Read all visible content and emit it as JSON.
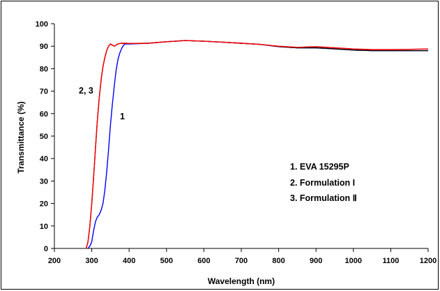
{
  "chart_data": {
    "type": "line",
    "title": "",
    "xlabel": "Wavelength (nm)",
    "ylabel": "Transmittance (%)",
    "xlim": [
      200,
      1200
    ],
    "ylim": [
      0,
      100
    ],
    "xticks": [
      200,
      300,
      400,
      500,
      600,
      700,
      800,
      900,
      1000,
      1100,
      1200
    ],
    "yticks": [
      0,
      10,
      20,
      30,
      40,
      50,
      60,
      70,
      80,
      90,
      100
    ],
    "grid": false,
    "series": [
      {
        "color": "#0000ff",
        "label": "1",
        "x": [
          290,
          295,
          300,
          305,
          310,
          315,
          320,
          325,
          330,
          335,
          340,
          345,
          350,
          355,
          360,
          365,
          370,
          375,
          380,
          385,
          390,
          395,
          400,
          450,
          500,
          550,
          600,
          650,
          700,
          750,
          800,
          850,
          900,
          950,
          1000,
          1050,
          1100,
          1150,
          1200
        ],
        "y": [
          0,
          1,
          3,
          8,
          12,
          14,
          15,
          17,
          20,
          26,
          34,
          44,
          55,
          64,
          72,
          79,
          84,
          87,
          89,
          90.5,
          91,
          91,
          91,
          91.3,
          92,
          92.5,
          92.2,
          91.8,
          91.3,
          90.8,
          89.8,
          89.3,
          89.3,
          88.8,
          88.3,
          88,
          88,
          88,
          88
        ]
      },
      {
        "color": "#000000",
        "label": "2, 3",
        "x": [
          285,
          290,
          295,
          300,
          305,
          310,
          315,
          320,
          325,
          330,
          335,
          340,
          345,
          350,
          355,
          360,
          365,
          370,
          375,
          380,
          390,
          400,
          450,
          500,
          550,
          600,
          650,
          700,
          750,
          800,
          850,
          900,
          950,
          1000,
          1050,
          1100,
          1150,
          1200
        ],
        "y": [
          0,
          3,
          10,
          20,
          32,
          45,
          57,
          67,
          75,
          81,
          85,
          88,
          90,
          91,
          90.5,
          90,
          90.5,
          91,
          91.2,
          91.3,
          91.3,
          91.2,
          91.3,
          92,
          92.5,
          92.2,
          91.8,
          91.3,
          90.8,
          89.8,
          89.3,
          89.3,
          88.8,
          88.3,
          88,
          88,
          88,
          88
        ]
      },
      {
        "color": "#ff0000",
        "label": "2, 3",
        "x": [
          285,
          290,
          295,
          300,
          305,
          310,
          315,
          320,
          325,
          330,
          335,
          340,
          345,
          350,
          355,
          360,
          365,
          370,
          375,
          380,
          390,
          400,
          450,
          500,
          550,
          600,
          650,
          700,
          750,
          800,
          850,
          900,
          950,
          1000,
          1050,
          1100,
          1150,
          1200
        ],
        "y": [
          0,
          3,
          10,
          20,
          32,
          45,
          57,
          67,
          75,
          81,
          85,
          88,
          90,
          91,
          90.5,
          90,
          90.5,
          91,
          91.2,
          91.3,
          91.3,
          91.2,
          91.3,
          92,
          92.5,
          92.2,
          91.8,
          91.3,
          90.8,
          90,
          89.5,
          89.8,
          89.3,
          88.8,
          88.5,
          88.5,
          88.6,
          88.8
        ]
      }
    ],
    "annotations": [
      {
        "text": "2, 3",
        "x": 252,
        "y": 71
      },
      {
        "text": "1",
        "x": 379,
        "y": 58
      }
    ],
    "legend": {
      "placement": "center-right",
      "entries": [
        "1. EVA 15295P",
        "2. Formulation I",
        "3. Formulation Ⅱ"
      ]
    }
  }
}
